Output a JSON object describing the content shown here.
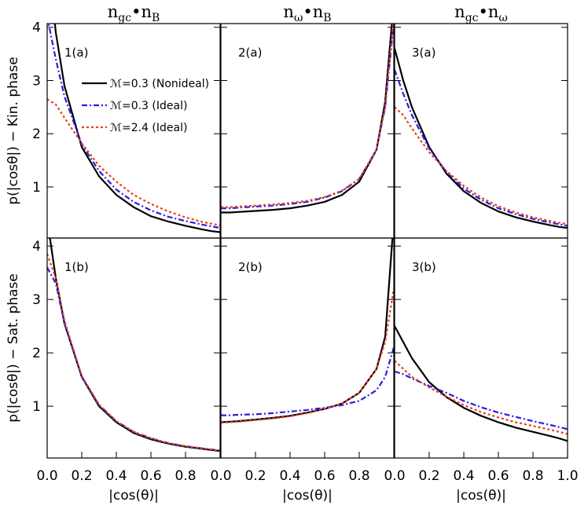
{
  "chart_data": [
    {
      "type": "line",
      "title": [
        "n",
        "gc",
        "•n",
        "B"
      ],
      "ylabel": "p(|cosθ|) − Kin. phase",
      "annotation": "1(a)",
      "legend": true,
      "x": [
        0,
        0.05,
        0.1,
        0.2,
        0.3,
        0.4,
        0.5,
        0.6,
        0.7,
        0.8,
        0.9,
        0.95,
        1.0
      ],
      "xlim": [
        0,
        1
      ],
      "ylim": [
        0.04,
        4.07
      ],
      "yticks": [
        1,
        2,
        3,
        4
      ],
      "series": [
        {
          "name": "ℳ=0.3 (Nonideal)",
          "color": "#000000",
          "style": "solid",
          "values": [
            5.5,
            3.9,
            2.9,
            1.75,
            1.2,
            0.85,
            0.62,
            0.45,
            0.35,
            0.27,
            0.2,
            0.17,
            0.15
          ]
        },
        {
          "name": "ℳ=0.3 (Ideal)",
          "color": "#2a1ee0",
          "style": "dashdot",
          "values": [
            4.2,
            3.4,
            2.7,
            1.8,
            1.3,
            0.95,
            0.72,
            0.56,
            0.44,
            0.36,
            0.29,
            0.26,
            0.23
          ]
        },
        {
          "name": "ℳ=2.4 (Ideal)",
          "color": "#e8401c",
          "style": "dotted",
          "values": [
            2.65,
            2.55,
            2.3,
            1.82,
            1.4,
            1.1,
            0.85,
            0.68,
            0.54,
            0.43,
            0.34,
            0.31,
            0.28
          ]
        }
      ]
    },
    {
      "type": "line",
      "title": [
        "n",
        "ω",
        "•n",
        "B"
      ],
      "annotation": "2(a)",
      "legend": false,
      "x": [
        0,
        0.05,
        0.1,
        0.2,
        0.3,
        0.4,
        0.5,
        0.6,
        0.7,
        0.8,
        0.9,
        0.95,
        1.0
      ],
      "xlim": [
        0,
        1
      ],
      "ylim": [
        0.04,
        4.07
      ],
      "series": [
        {
          "name": "ℳ=0.3 (Nonideal)",
          "color": "#000000",
          "style": "solid",
          "values": [
            0.52,
            0.52,
            0.53,
            0.55,
            0.57,
            0.6,
            0.65,
            0.72,
            0.85,
            1.1,
            1.7,
            2.6,
            4.5
          ]
        },
        {
          "name": "ℳ=0.3 (Ideal)",
          "color": "#2a1ee0",
          "style": "dashdot",
          "values": [
            0.6,
            0.6,
            0.61,
            0.63,
            0.65,
            0.68,
            0.72,
            0.8,
            0.92,
            1.15,
            1.7,
            2.5,
            4.1
          ]
        },
        {
          "name": "ℳ=2.4 (Ideal)",
          "color": "#e8401c",
          "style": "dotted",
          "values": [
            0.62,
            0.62,
            0.63,
            0.65,
            0.67,
            0.7,
            0.74,
            0.81,
            0.93,
            1.15,
            1.7,
            2.5,
            4.2
          ]
        }
      ]
    },
    {
      "type": "line",
      "title": [
        "n",
        "gc",
        "•n",
        "ω"
      ],
      "annotation": "3(a)",
      "legend": false,
      "x": [
        0,
        0.05,
        0.1,
        0.2,
        0.3,
        0.4,
        0.5,
        0.6,
        0.7,
        0.8,
        0.9,
        0.95,
        1.0
      ],
      "xlim": [
        0,
        1
      ],
      "ylim": [
        0.04,
        4.07
      ],
      "series": [
        {
          "name": "ℳ=0.3 (Nonideal)",
          "color": "#000000",
          "style": "solid",
          "values": [
            3.6,
            3.0,
            2.5,
            1.75,
            1.25,
            0.92,
            0.7,
            0.54,
            0.43,
            0.35,
            0.28,
            0.25,
            0.23
          ]
        },
        {
          "name": "ℳ=0.3 (Ideal)",
          "color": "#2a1ee0",
          "style": "dashdot",
          "values": [
            3.2,
            2.75,
            2.35,
            1.72,
            1.28,
            0.97,
            0.76,
            0.6,
            0.49,
            0.4,
            0.33,
            0.3,
            0.27
          ]
        },
        {
          "name": "ℳ=2.4 (Ideal)",
          "color": "#e8401c",
          "style": "dotted",
          "values": [
            2.5,
            2.35,
            2.1,
            1.65,
            1.3,
            1.02,
            0.8,
            0.64,
            0.52,
            0.43,
            0.36,
            0.33,
            0.3
          ]
        }
      ]
    },
    {
      "type": "line",
      "ylabel": "p(|cosθ|) − Sat. phase",
      "xlabel": "|cos(θ)|",
      "annotation": "1(b)",
      "legend": false,
      "x": [
        0,
        0.05,
        0.1,
        0.2,
        0.3,
        0.4,
        0.5,
        0.6,
        0.7,
        0.8,
        0.9,
        0.95,
        1.0
      ],
      "xlim": [
        0,
        1
      ],
      "ylim": [
        0.03,
        4.15
      ],
      "yticks": [
        1,
        2,
        3,
        4
      ],
      "xticks": [
        {
          "value": 0,
          "label": "0.0"
        },
        {
          "value": 0.2,
          "label": "0.2"
        },
        {
          "value": 0.4,
          "label": "0.4"
        },
        {
          "value": 0.6,
          "label": "0.6"
        },
        {
          "value": 0.8,
          "label": "0.8"
        }
      ],
      "series": [
        {
          "name": "ℳ=0.3 (Nonideal)",
          "color": "#000000",
          "style": "solid",
          "values": [
            4.5,
            3.4,
            2.55,
            1.55,
            1.0,
            0.7,
            0.5,
            0.38,
            0.3,
            0.24,
            0.2,
            0.18,
            0.16
          ]
        },
        {
          "name": "ℳ=0.3 (Ideal)",
          "color": "#2a1ee0",
          "style": "dashdot",
          "values": [
            3.6,
            3.3,
            2.55,
            1.55,
            1.02,
            0.72,
            0.52,
            0.4,
            0.31,
            0.25,
            0.21,
            0.19,
            0.17
          ]
        },
        {
          "name": "ℳ=2.4 (Ideal)",
          "color": "#e8401c",
          "style": "dotted",
          "values": [
            3.85,
            3.4,
            2.6,
            1.57,
            1.03,
            0.72,
            0.52,
            0.4,
            0.31,
            0.25,
            0.21,
            0.19,
            0.17
          ]
        }
      ]
    },
    {
      "type": "line",
      "xlabel": "|cos(θ)|",
      "annotation": "2(b)",
      "legend": false,
      "x": [
        0,
        0.05,
        0.1,
        0.2,
        0.3,
        0.4,
        0.5,
        0.6,
        0.7,
        0.8,
        0.9,
        0.95,
        1.0
      ],
      "xlim": [
        0,
        1
      ],
      "ylim": [
        0.03,
        4.15
      ],
      "xticks": [
        {
          "value": 0,
          "label": "0.0"
        },
        {
          "value": 0.2,
          "label": "0.2"
        },
        {
          "value": 0.4,
          "label": "0.4"
        },
        {
          "value": 0.6,
          "label": "0.6"
        },
        {
          "value": 0.8,
          "label": "0.8"
        }
      ],
      "series": [
        {
          "name": "ℳ=0.3 (Nonideal)",
          "color": "#000000",
          "style": "solid",
          "values": [
            0.7,
            0.71,
            0.72,
            0.75,
            0.78,
            0.82,
            0.88,
            0.95,
            1.05,
            1.25,
            1.7,
            2.3,
            4.5
          ]
        },
        {
          "name": "ℳ=0.3 (Ideal)",
          "color": "#2a1ee0",
          "style": "dashdot",
          "values": [
            0.83,
            0.83,
            0.84,
            0.85,
            0.87,
            0.9,
            0.93,
            0.97,
            1.02,
            1.1,
            1.3,
            1.55,
            2.1
          ]
        },
        {
          "name": "ℳ=2.4 (Ideal)",
          "color": "#e8401c",
          "style": "dotted",
          "values": [
            0.69,
            0.7,
            0.71,
            0.74,
            0.77,
            0.81,
            0.87,
            0.95,
            1.05,
            1.25,
            1.7,
            2.2,
            3.2
          ]
        }
      ]
    },
    {
      "type": "line",
      "xlabel": "|cos(θ)|",
      "annotation": "3(b)",
      "legend": false,
      "x": [
        0,
        0.05,
        0.1,
        0.2,
        0.3,
        0.4,
        0.5,
        0.6,
        0.7,
        0.8,
        0.9,
        0.95,
        1.0
      ],
      "xlim": [
        0,
        1
      ],
      "ylim": [
        0.03,
        4.15
      ],
      "xticks": [
        {
          "value": 0,
          "label": "0.0"
        },
        {
          "value": 0.2,
          "label": "0.2"
        },
        {
          "value": 0.4,
          "label": "0.4"
        },
        {
          "value": 0.6,
          "label": "0.6"
        },
        {
          "value": 0.8,
          "label": "0.8"
        },
        {
          "value": 1,
          "label": "1.0"
        }
      ],
      "series": [
        {
          "name": "ℳ=0.3 (Nonideal)",
          "color": "#000000",
          "style": "solid",
          "values": [
            2.5,
            2.2,
            1.9,
            1.45,
            1.17,
            0.97,
            0.82,
            0.7,
            0.6,
            0.52,
            0.44,
            0.4,
            0.35
          ]
        },
        {
          "name": "ℳ=0.3 (Ideal)",
          "color": "#2a1ee0",
          "style": "dashdot",
          "values": [
            1.65,
            1.6,
            1.52,
            1.38,
            1.25,
            1.1,
            0.98,
            0.88,
            0.8,
            0.72,
            0.65,
            0.61,
            0.57
          ]
        },
        {
          "name": "ℳ=2.4 (Ideal)",
          "color": "#e8401c",
          "style": "dotted",
          "values": [
            1.85,
            1.7,
            1.55,
            1.35,
            1.18,
            1.02,
            0.89,
            0.79,
            0.7,
            0.63,
            0.56,
            0.52,
            0.48
          ]
        }
      ]
    }
  ]
}
